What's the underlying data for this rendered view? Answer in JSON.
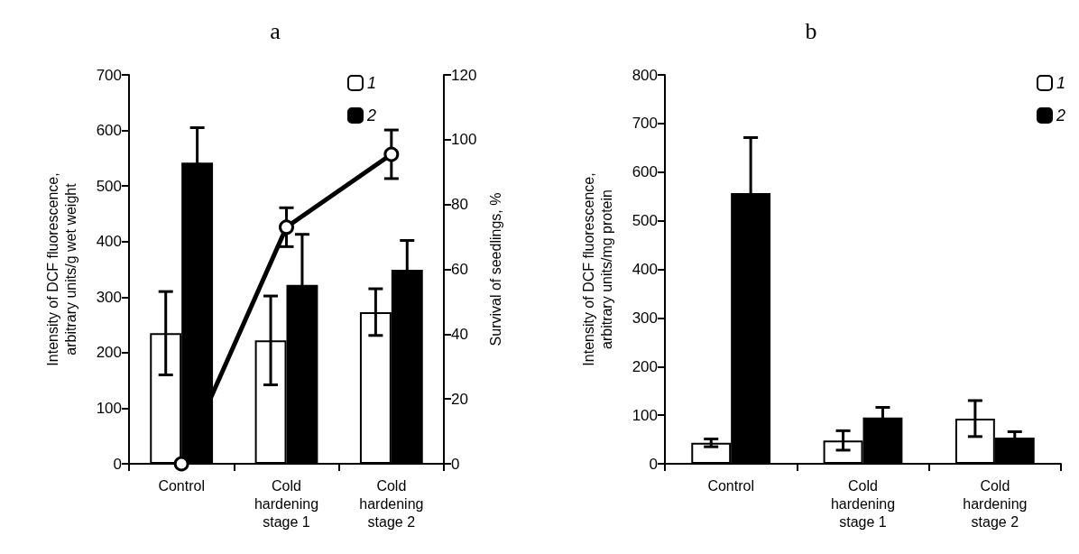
{
  "chart_data": [
    {
      "type": "bar",
      "title": "a",
      "ylabel": "Intensity of DCF fluorescence,\narbitrary units/g wet weight",
      "y2label": "Survival of seedlings, %",
      "categories": [
        "Control",
        "Cold\nhardening\nstage 1",
        "Cold\nhardening\nstage 2"
      ],
      "ylim": [
        0,
        700
      ],
      "yticks": [
        0,
        100,
        200,
        300,
        400,
        500,
        600,
        700
      ],
      "y2lim": [
        0,
        120
      ],
      "y2ticks": [
        0,
        20,
        40,
        60,
        80,
        100,
        120
      ],
      "legend": "top right",
      "marker": "circle",
      "series": [
        {
          "name": "1",
          "color": "#ffffff",
          "values": [
            235,
            222,
            273
          ],
          "errors": [
            75,
            80,
            42
          ]
        },
        {
          "name": "2",
          "color": "#000000",
          "values": [
            542,
            322,
            349
          ],
          "errors": [
            63,
            91,
            53
          ]
        },
        {
          "type": "line",
          "axis": "y2",
          "color": "#000000",
          "values": [
            0,
            73,
            95.5
          ],
          "errors": [
            null,
            6,
            7.5
          ]
        }
      ]
    },
    {
      "type": "bar",
      "title": "b",
      "ylabel": "Intensity of DCF fluorescence,\narbitrary units/mg protein",
      "categories": [
        "Control",
        "Cold\nhardening\nstage 1",
        "Cold\nhardening\nstage 2"
      ],
      "ylim": [
        0,
        800
      ],
      "yticks": [
        0,
        100,
        200,
        300,
        400,
        500,
        600,
        700,
        800
      ],
      "legend": "top right",
      "series": [
        {
          "name": "1",
          "color": "#ffffff",
          "values": [
            43,
            48,
            93
          ],
          "errors": [
            8,
            20,
            37
          ]
        },
        {
          "name": "2",
          "color": "#000000",
          "values": [
            557,
            95,
            54
          ],
          "errors": [
            114,
            21,
            12
          ]
        }
      ]
    }
  ]
}
